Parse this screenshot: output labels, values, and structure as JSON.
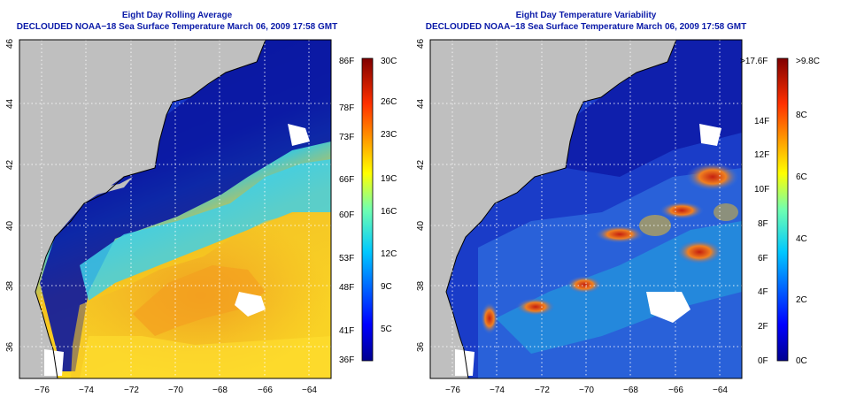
{
  "left_map": {
    "title_line1": "Eight Day Rolling Average",
    "title_line2": "DECLOUDED NOAA−18 Sea Surface Temperature March 06, 2009 17:58 GMT",
    "colorbar_f_labels": [
      "86F",
      "78F",
      "73F",
      "66F",
      "60F",
      "53F",
      "48F",
      "41F",
      "36F"
    ],
    "colorbar_c_labels": [
      "30C",
      "26C",
      "23C",
      "19C",
      "16C",
      "12C",
      "9C",
      "5C"
    ]
  },
  "right_map": {
    "title_line1": "Eight Day Temperature Variability",
    "title_line2": "DECLOUDED NOAA−18 Sea Surface Temperature March 06, 2009 17:58 GMT",
    "colorbar_f_labels": [
      ">17.6F",
      "14F",
      "12F",
      "10F",
      "8F",
      "6F",
      "4F",
      "2F",
      "0F"
    ],
    "colorbar_c_labels": [
      ">9.8C",
      "8C",
      "6C",
      "4C",
      "2C",
      "0C"
    ]
  },
  "axes": {
    "lon_labels": [
      "−76",
      "−74",
      "−72",
      "−70",
      "−68",
      "−66",
      "−64"
    ],
    "lat_labels": [
      "46",
      "44",
      "42",
      "40",
      "38",
      "36"
    ]
  },
  "colors": {
    "land": "#bfbfbf",
    "title": "#0a1aa8",
    "cold": "#0a1490",
    "warm": "#c41818"
  }
}
